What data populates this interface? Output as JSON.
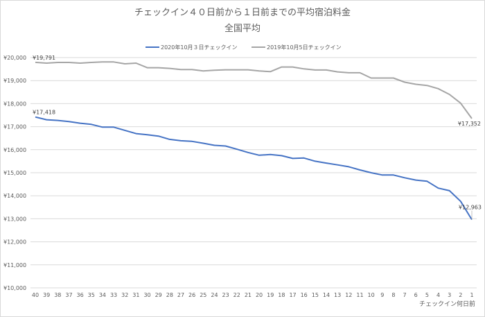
{
  "chart_data": {
    "type": "line",
    "title": "チェックイン４０日前から１日前までの平均宿泊料金",
    "subtitle": "全国平均",
    "xlabel": "チェックイン何日前",
    "ylabel": "",
    "ylim": [
      10000,
      20000
    ],
    "yticks": [
      10000,
      11000,
      12000,
      13000,
      14000,
      15000,
      16000,
      17000,
      18000,
      19000,
      20000
    ],
    "ytick_labels": [
      "¥10,000",
      "¥11,000",
      "¥12,000",
      "¥13,000",
      "¥14,000",
      "¥15,000",
      "¥16,000",
      "¥17,000",
      "¥18,000",
      "¥19,000",
      "¥20,000"
    ],
    "grid": true,
    "legend_position": "top",
    "x": [
      "40",
      "39",
      "38",
      "37",
      "36",
      "35",
      "34",
      "33",
      "32",
      "31",
      "30",
      "29",
      "28",
      "27",
      "26",
      "25",
      "24",
      "23",
      "22",
      "21",
      "20",
      "19",
      "18",
      "17",
      "16",
      "15",
      "14",
      "13",
      "12",
      "11",
      "10",
      "9",
      "8",
      "7",
      "6",
      "5",
      "4",
      "3",
      "2",
      "1"
    ],
    "series": [
      {
        "name": "2020年10月３日チェックイン",
        "color": "#4472c4",
        "values": [
          17418,
          17300,
          17270,
          17220,
          17150,
          17100,
          16980,
          16980,
          16840,
          16700,
          16650,
          16590,
          16450,
          16390,
          16360,
          16280,
          16190,
          16160,
          16020,
          15880,
          15760,
          15790,
          15740,
          15620,
          15640,
          15500,
          15420,
          15340,
          15260,
          15120,
          15000,
          14900,
          14900,
          14780,
          14680,
          14630,
          14330,
          14220,
          13760,
          12963
        ],
        "labels": [
          {
            "index": 0,
            "text": "¥17,418"
          },
          {
            "index": 39,
            "text": "¥12,963"
          }
        ]
      },
      {
        "name": "2019年10月5日チェックイン",
        "color": "#a5a5a5",
        "values": [
          19791,
          19760,
          19790,
          19790,
          19760,
          19790,
          19810,
          19810,
          19730,
          19760,
          19560,
          19560,
          19530,
          19480,
          19480,
          19420,
          19450,
          19470,
          19470,
          19470,
          19420,
          19390,
          19590,
          19590,
          19510,
          19460,
          19460,
          19380,
          19340,
          19340,
          19110,
          19110,
          19110,
          18930,
          18840,
          18790,
          18650,
          18400,
          18020,
          17352
        ],
        "labels": [
          {
            "index": 0,
            "text": "¥19,791"
          },
          {
            "index": 39,
            "text": "¥17,352"
          }
        ]
      }
    ]
  }
}
